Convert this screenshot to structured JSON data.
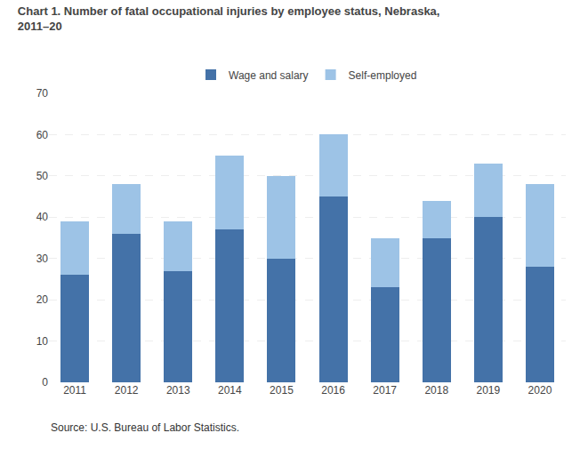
{
  "chart_data": {
    "type": "bar",
    "title": "Chart 1. Number of fatal occupational injuries by employee status, Nebraska,\n2011–20",
    "annotations": [
      "Source: U.S. Bureau of Labor Statistics."
    ],
    "categories": [
      "2011",
      "2012",
      "2013",
      "2014",
      "2015",
      "2016",
      "2017",
      "2018",
      "2019",
      "2020"
    ],
    "series": [
      {
        "name": "Wage and salary",
        "color": "#4472A8",
        "values": [
          26,
          36,
          27,
          37,
          30,
          45,
          23,
          35,
          40,
          28
        ]
      },
      {
        "name": "Self-employed",
        "color": "#9DC3E6",
        "values": [
          13,
          12,
          12,
          18,
          20,
          15,
          12,
          9,
          13,
          20
        ]
      }
    ],
    "stacked": true,
    "ylim": [
      0,
      70
    ],
    "yticks": [
      0,
      10,
      20,
      30,
      40,
      50,
      60,
      70
    ],
    "grid": true,
    "legend": "top"
  }
}
